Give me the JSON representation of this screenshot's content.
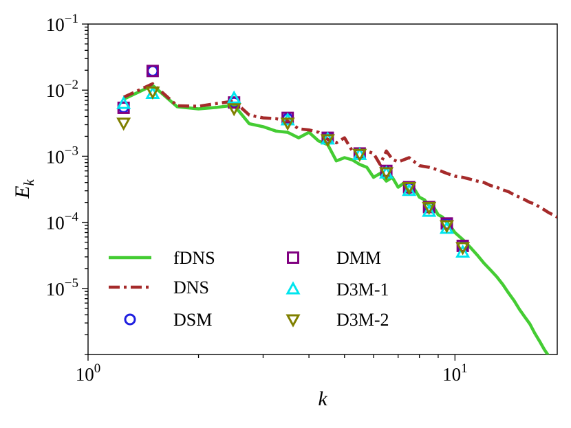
{
  "chart_data": {
    "type": "line",
    "title": "",
    "xlabel": "k",
    "ylabel": "E_k",
    "x_scale": "log",
    "y_scale": "log",
    "xlim": [
      1,
      19
    ],
    "ylim": [
      1e-06,
      0.1
    ],
    "x_ticks": [
      {
        "value": 1,
        "label": "10^0"
      },
      {
        "value": 10,
        "label": "10^1"
      }
    ],
    "y_ticks": [
      {
        "value": 0.1,
        "label": "10^−1"
      },
      {
        "value": 0.01,
        "label": "10^−2"
      },
      {
        "value": 0.001,
        "label": "10^−3"
      },
      {
        "value": 0.0001,
        "label": "10^−4"
      },
      {
        "value": 1e-05,
        "label": "10^−5"
      }
    ],
    "grid": false,
    "legend_position": "lower-left",
    "series": [
      {
        "name": "fDNS",
        "kind": "line",
        "style": "solid",
        "color": "#44cc33",
        "points": [
          [
            1.25,
            0.0073
          ],
          [
            1.5,
            0.0118
          ],
          [
            1.75,
            0.0056
          ],
          [
            2.0,
            0.0052
          ],
          [
            2.25,
            0.0055
          ],
          [
            2.5,
            0.0059
          ],
          [
            2.75,
            0.0031
          ],
          [
            3.0,
            0.0028
          ],
          [
            3.25,
            0.0024
          ],
          [
            3.5,
            0.0023
          ],
          [
            3.75,
            0.0019
          ],
          [
            4.0,
            0.0023
          ],
          [
            4.25,
            0.0017
          ],
          [
            4.5,
            0.0015
          ],
          [
            4.75,
            0.00085
          ],
          [
            5.0,
            0.00095
          ],
          [
            5.25,
            0.00088
          ],
          [
            5.5,
            0.00075
          ],
          [
            5.75,
            0.00068
          ],
          [
            6.0,
            0.00048
          ],
          [
            6.25,
            0.00055
          ],
          [
            6.5,
            0.00042
          ],
          [
            6.75,
            0.00048
          ],
          [
            7.0,
            0.00034
          ],
          [
            7.25,
            0.00039
          ],
          [
            7.5,
            0.00029
          ],
          [
            7.75,
            0.00032
          ],
          [
            8.0,
            0.00024
          ],
          [
            8.25,
            0.00022
          ],
          [
            8.5,
            0.00018
          ],
          [
            8.75,
            0.00017
          ],
          [
            9.0,
            0.00013
          ],
          [
            9.25,
            0.00012
          ],
          [
            9.5,
            0.0001
          ],
          [
            9.75,
            8.5e-05
          ],
          [
            10.0,
            7e-05
          ],
          [
            10.5,
            5.5e-05
          ],
          [
            11.0,
            4.2e-05
          ],
          [
            11.5,
            3.2e-05
          ],
          [
            12.0,
            2.4e-05
          ],
          [
            12.5,
            1.9e-05
          ],
          [
            13.0,
            1.5e-05
          ],
          [
            13.5,
            1.15e-05
          ],
          [
            14.0,
            8.5e-06
          ],
          [
            14.5,
            6.5e-06
          ],
          [
            15.0,
            4.8e-06
          ],
          [
            15.5,
            3.7e-06
          ],
          [
            16.0,
            2.9e-06
          ],
          [
            16.5,
            2.1e-06
          ],
          [
            17.0,
            1.6e-06
          ],
          [
            17.5,
            1.2e-06
          ],
          [
            18.0,
            9.5e-07
          ]
        ]
      },
      {
        "name": "DNS",
        "kind": "line",
        "style": "dashdot",
        "color": "#a52a2a",
        "points": [
          [
            1.25,
            0.0078
          ],
          [
            1.5,
            0.0125
          ],
          [
            1.75,
            0.0058
          ],
          [
            2.0,
            0.0057
          ],
          [
            2.25,
            0.0063
          ],
          [
            2.5,
            0.0068
          ],
          [
            2.75,
            0.0042
          ],
          [
            3.0,
            0.0038
          ],
          [
            3.25,
            0.0037
          ],
          [
            3.5,
            0.0034
          ],
          [
            3.75,
            0.0026
          ],
          [
            4.0,
            0.0025
          ],
          [
            4.25,
            0.0023
          ],
          [
            4.5,
            0.0018
          ],
          [
            4.75,
            0.0016
          ],
          [
            5.0,
            0.0019
          ],
          [
            5.25,
            0.0012
          ],
          [
            5.5,
            0.0013
          ],
          [
            5.75,
            0.0012
          ],
          [
            6.0,
            0.0011
          ],
          [
            6.25,
            0.00075
          ],
          [
            6.5,
            0.0012
          ],
          [
            6.75,
            0.0009
          ],
          [
            7.0,
            0.00082
          ],
          [
            7.5,
            0.00095
          ],
          [
            8.0,
            0.00072
          ],
          [
            8.5,
            0.00068
          ],
          [
            9.0,
            0.00062
          ],
          [
            9.5,
            0.00055
          ],
          [
            10.0,
            0.0005
          ],
          [
            10.5,
            0.00048
          ],
          [
            11.0,
            0.00045
          ],
          [
            11.5,
            0.00042
          ],
          [
            12.0,
            0.0004
          ],
          [
            12.5,
            0.00036
          ],
          [
            13.0,
            0.00034
          ],
          [
            13.5,
            0.00031
          ],
          [
            14.0,
            0.00029
          ],
          [
            14.5,
            0.00026
          ],
          [
            15.0,
            0.00024
          ],
          [
            15.5,
            0.00022
          ],
          [
            16.0,
            0.0002
          ],
          [
            16.5,
            0.00019
          ],
          [
            17.0,
            0.00017
          ],
          [
            17.5,
            0.000155
          ],
          [
            18.0,
            0.00014
          ],
          [
            18.5,
            0.00013
          ],
          [
            19.0,
            0.00012
          ]
        ]
      },
      {
        "name": "DSM",
        "kind": "marker",
        "marker": "circle",
        "color": "#1f1fe0",
        "points": [
          [
            1.25,
            0.0055
          ],
          [
            1.5,
            0.0195
          ],
          [
            2.5,
            0.0065
          ],
          [
            3.5,
            0.0037
          ],
          [
            4.5,
            0.0019
          ],
          [
            5.5,
            0.0011
          ],
          [
            6.5,
            0.00058
          ],
          [
            7.5,
            0.00033
          ],
          [
            8.5,
            0.00017
          ],
          [
            9.5,
            9.5e-05
          ],
          [
            10.5,
            4.3e-05
          ]
        ]
      },
      {
        "name": "DMM",
        "kind": "marker",
        "marker": "square",
        "color": "#800080",
        "points": [
          [
            1.25,
            0.0054
          ],
          [
            1.5,
            0.0195
          ],
          [
            2.5,
            0.0065
          ],
          [
            3.5,
            0.0038
          ],
          [
            4.5,
            0.0019
          ],
          [
            5.5,
            0.0011
          ],
          [
            6.5,
            0.0006
          ],
          [
            7.5,
            0.00034
          ],
          [
            8.5,
            0.00017
          ],
          [
            9.5,
            9.6e-05
          ],
          [
            10.5,
            4.4e-05
          ]
        ]
      },
      {
        "name": "D3M-1",
        "kind": "marker",
        "marker": "triangle-up",
        "color": "#00e5ee",
        "points": [
          [
            1.25,
            0.0062
          ],
          [
            1.5,
            0.0088
          ],
          [
            2.5,
            0.0075
          ],
          [
            3.5,
            0.0035
          ],
          [
            4.5,
            0.0018
          ],
          [
            5.5,
            0.00105
          ],
          [
            6.5,
            0.00055
          ],
          [
            7.5,
            0.0003
          ],
          [
            8.5,
            0.000145
          ],
          [
            9.5,
            8e-05
          ],
          [
            10.5,
            3.5e-05
          ]
        ]
      },
      {
        "name": "D3M-2",
        "kind": "marker",
        "marker": "triangle-down",
        "color": "#808000",
        "points": [
          [
            1.25,
            0.0032
          ],
          [
            1.5,
            0.0095
          ],
          [
            2.5,
            0.0053
          ],
          [
            3.5,
            0.0032
          ],
          [
            4.5,
            0.0018
          ],
          [
            5.5,
            0.00108
          ],
          [
            6.5,
            0.00057
          ],
          [
            7.5,
            0.00034
          ],
          [
            8.5,
            0.00017
          ],
          [
            9.5,
            9e-05
          ],
          [
            10.5,
            4.2e-05
          ]
        ]
      }
    ]
  }
}
